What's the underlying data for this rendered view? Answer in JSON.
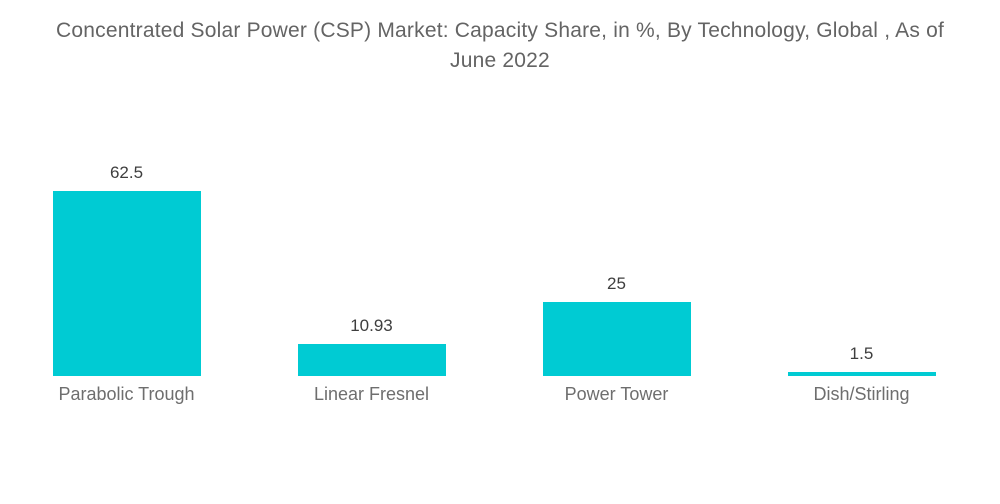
{
  "title": "Concentrated Solar Power (CSP) Market: Capacity Share, in %, By Technology, Global , As of June 2022",
  "chart_data": {
    "type": "bar",
    "title": "Concentrated Solar Power (CSP) Market: Capacity Share, in %, By Technology, Global , As of June 2022",
    "categories": [
      "Parabolic Trough",
      "Linear Fresnel",
      "Power Tower",
      "Dish/Stirling"
    ],
    "values": [
      62.5,
      10.93,
      25,
      1.5
    ],
    "value_labels": [
      "62.5",
      "10.93",
      "25",
      "1.5"
    ],
    "xlabel": "",
    "ylabel": "",
    "unit": "%",
    "ylim": [
      0,
      62.5
    ],
    "grid": false,
    "legend": false,
    "axes_visible": false,
    "bar_color": "#00CBD3",
    "value_label_color": "#3e3e3e",
    "category_label_color": "#6e6e6e",
    "title_color": "#646464",
    "background_color": "#ffffff"
  }
}
